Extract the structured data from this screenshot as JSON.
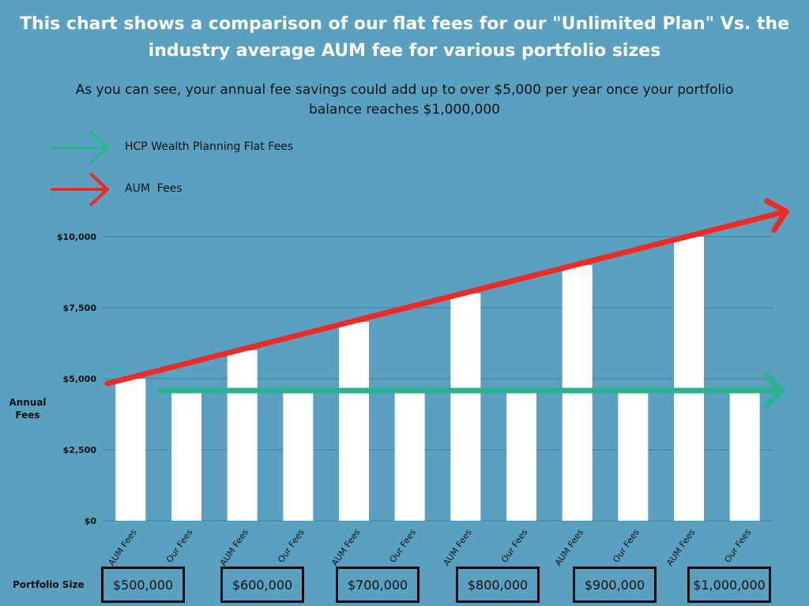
{
  "title": "This chart shows a comparison of our flat fees for our \"Unlimited Plan\" Vs. the industry average AUM fee for various portfolio sizes",
  "subtitle": "As you can see, your annual fee savings could add up to over $5,000 per year once your portfolio balance reaches $1,000,000",
  "legend": [
    {
      "label": "HCP Wealth Planning Flat Fees",
      "color": "#2bb38f"
    },
    {
      "label": "AUM  Fees",
      "color": "#ee2a24"
    }
  ],
  "colors": {
    "background": "#5aa0c0",
    "bar": "#ffffff",
    "grid": "#3d7c99"
  },
  "chart_data": {
    "type": "bar",
    "ylabel": "Annual Fees",
    "xlabel": "Portfolio Size",
    "ylim": [
      0,
      10000
    ],
    "yticks": [
      0,
      2500,
      5000,
      7500,
      10000
    ],
    "ytick_labels": [
      "$0",
      "$2,500",
      "$5,000",
      "$7,500",
      "$10,000"
    ],
    "categories": [
      "$500,000",
      "$600,000",
      "$700,000",
      "$800,000",
      "$900,000",
      "$1,000,000"
    ],
    "series": [
      {
        "name": "AUM Fees",
        "values": [
          5000,
          6000,
          7000,
          8000,
          9000,
          10000
        ]
      },
      {
        "name": "Our Fees",
        "values": [
          4500,
          4500,
          4500,
          4500,
          4500,
          4500
        ]
      }
    ]
  }
}
